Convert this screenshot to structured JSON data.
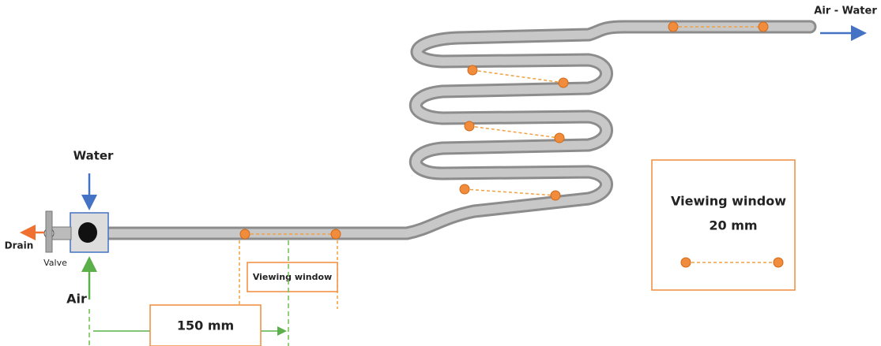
{
  "labels": {
    "outlet": "Air - Water",
    "water": "Water",
    "drain": "Drain",
    "valve": "Valve",
    "air": "Air",
    "window_marker": "Viewing window",
    "distance": "150 mm"
  },
  "legend": {
    "title": "Viewing window",
    "size": "20 mm"
  }
}
